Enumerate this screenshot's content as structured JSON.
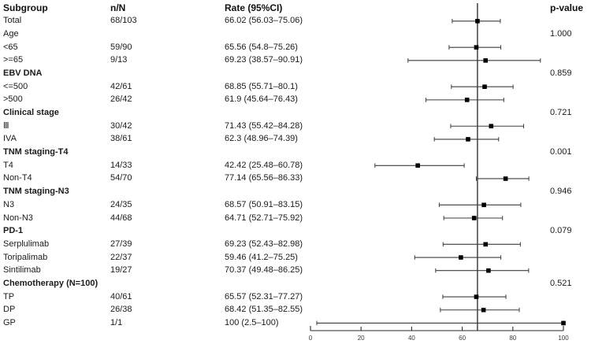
{
  "header": {
    "subgroup": "Subgroup",
    "n_N": "n/N",
    "rate": "Rate (95%CI)",
    "p_value": "p-value"
  },
  "colors": {
    "text": "#1b1b1b",
    "ci_line": "#3c3c3c",
    "marker": "#000000",
    "axis": "#2a2a2a",
    "ref_line": "#111111",
    "background": "#ffffff"
  },
  "chart_data": {
    "type": "scatter",
    "subtype": "forest-plot",
    "title": "",
    "xlabel": "",
    "ylabel": "",
    "xlim": [
      0,
      100
    ],
    "x_ticks": [
      0,
      20,
      40,
      60,
      80,
      100
    ],
    "grid": false,
    "reference_line": 66.02,
    "rows": [
      {
        "label": "Total",
        "bold": false,
        "n_N": "68/103",
        "rate_text": "66.02 (56.03–75.06)",
        "rate": 66.02,
        "lo": 56.03,
        "hi": 75.06,
        "p": ""
      },
      {
        "label": "Age",
        "bold": false,
        "n_N": "",
        "rate_text": "",
        "rate": null,
        "lo": null,
        "hi": null,
        "p": "1.000"
      },
      {
        "label": "<65",
        "bold": false,
        "n_N": "59/90",
        "rate_text": "65.56 (54.8–75.26)",
        "rate": 65.56,
        "lo": 54.8,
        "hi": 75.26,
        "p": ""
      },
      {
        "label": ">=65",
        "bold": false,
        "n_N": "9/13",
        "rate_text": "69.23 (38.57–90.91)",
        "rate": 69.23,
        "lo": 38.57,
        "hi": 90.91,
        "p": ""
      },
      {
        "label": "EBV DNA",
        "bold": true,
        "n_N": "",
        "rate_text": "",
        "rate": null,
        "lo": null,
        "hi": null,
        "p": "0.859"
      },
      {
        "label": "<=500",
        "bold": false,
        "n_N": "42/61",
        "rate_text": "68.85 (55.71–80.1)",
        "rate": 68.85,
        "lo": 55.71,
        "hi": 80.1,
        "p": ""
      },
      {
        "label": ">500",
        "bold": false,
        "n_N": "26/42",
        "rate_text": "61.9 (45.64–76.43)",
        "rate": 61.9,
        "lo": 45.64,
        "hi": 76.43,
        "p": ""
      },
      {
        "label": "Clinical stage",
        "bold": true,
        "n_N": "",
        "rate_text": "",
        "rate": null,
        "lo": null,
        "hi": null,
        "p": "0.721"
      },
      {
        "label": "Ⅲ",
        "bold": false,
        "n_N": "30/42",
        "rate_text": "71.43 (55.42–84.28)",
        "rate": 71.43,
        "lo": 55.42,
        "hi": 84.28,
        "p": ""
      },
      {
        "label": "IVA",
        "bold": false,
        "n_N": "38/61",
        "rate_text": "62.3 (48.96–74.39)",
        "rate": 62.3,
        "lo": 48.96,
        "hi": 74.39,
        "p": ""
      },
      {
        "label": "TNM staging-T4",
        "bold": true,
        "n_N": "",
        "rate_text": "",
        "rate": null,
        "lo": null,
        "hi": null,
        "p": "0.001"
      },
      {
        "label": "T4",
        "bold": false,
        "n_N": "14/33",
        "rate_text": "42.42 (25.48–60.78)",
        "rate": 42.42,
        "lo": 25.48,
        "hi": 60.78,
        "p": ""
      },
      {
        "label": "Non-T4",
        "bold": false,
        "n_N": "54/70",
        "rate_text": "77.14 (65.56–86.33)",
        "rate": 77.14,
        "lo": 65.56,
        "hi": 86.33,
        "p": ""
      },
      {
        "label": "TNM staging-N3",
        "bold": true,
        "n_N": "",
        "rate_text": "",
        "rate": null,
        "lo": null,
        "hi": null,
        "p": "0.946"
      },
      {
        "label": "N3",
        "bold": false,
        "n_N": "24/35",
        "rate_text": "68.57 (50.91–83.15)",
        "rate": 68.57,
        "lo": 50.91,
        "hi": 83.15,
        "p": ""
      },
      {
        "label": "Non-N3",
        "bold": false,
        "n_N": "44/68",
        "rate_text": "64.71 (52.71–75.92)",
        "rate": 64.71,
        "lo": 52.71,
        "hi": 75.92,
        "p": ""
      },
      {
        "label": "PD-1",
        "bold": true,
        "n_N": "",
        "rate_text": "",
        "rate": null,
        "lo": null,
        "hi": null,
        "p": "0.079"
      },
      {
        "label": "Serplulimab",
        "bold": false,
        "n_N": "27/39",
        "rate_text": "69.23 (52.43–82.98)",
        "rate": 69.23,
        "lo": 52.43,
        "hi": 82.98,
        "p": ""
      },
      {
        "label": "Toripalimab",
        "bold": false,
        "n_N": "22/37",
        "rate_text": "59.46 (41.2–75.25)",
        "rate": 59.46,
        "lo": 41.2,
        "hi": 75.25,
        "p": ""
      },
      {
        "label": "Sintilimab",
        "bold": false,
        "n_N": "19/27",
        "rate_text": "70.37 (49.48–86.25)",
        "rate": 70.37,
        "lo": 49.48,
        "hi": 86.25,
        "p": ""
      },
      {
        "label": "Chemotherapy (N=100)",
        "bold": true,
        "n_N": "",
        "rate_text": "",
        "rate": null,
        "lo": null,
        "hi": null,
        "p": "0.521"
      },
      {
        "label": "TP",
        "bold": false,
        "n_N": "40/61",
        "rate_text": "65.57 (52.31–77.27)",
        "rate": 65.57,
        "lo": 52.31,
        "hi": 77.27,
        "p": ""
      },
      {
        "label": "DP",
        "bold": false,
        "n_N": "26/38",
        "rate_text": "68.42 (51.35–82.55)",
        "rate": 68.42,
        "lo": 51.35,
        "hi": 82.55,
        "p": ""
      },
      {
        "label": "GP",
        "bold": false,
        "n_N": "1/1",
        "rate_text": "100 (2.5–100)",
        "rate": 100,
        "lo": 2.5,
        "hi": 100,
        "p": ""
      }
    ]
  },
  "layout_note": ""
}
